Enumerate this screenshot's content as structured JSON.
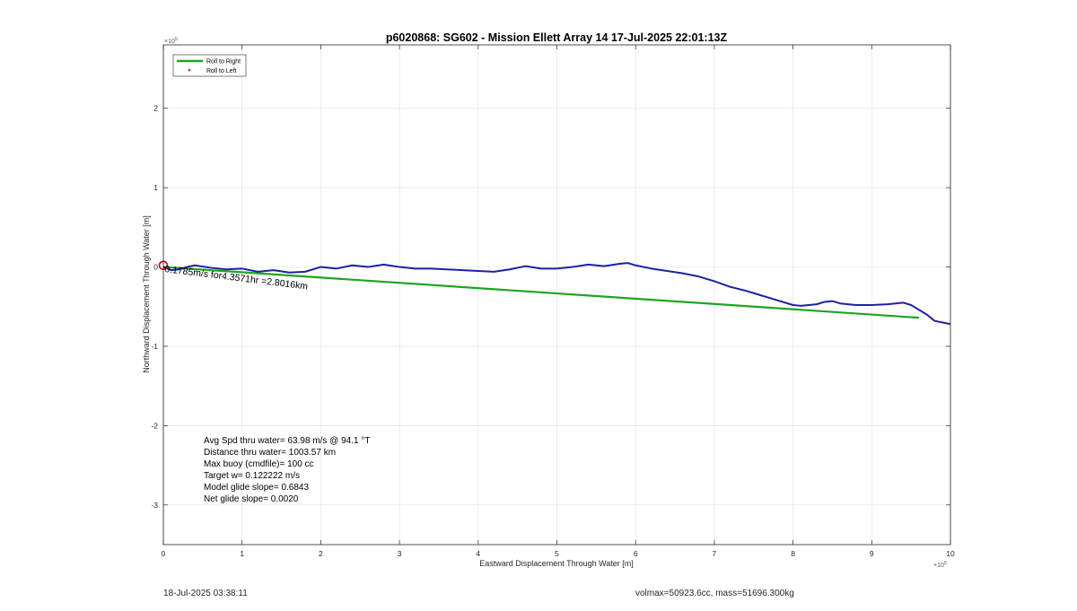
{
  "chart_data": {
    "type": "line",
    "title": "p6020868: SG602 - Mission Ellett Array 14 17-Jul-2025 22:01:13Z",
    "xlabel": "Eastward Displacement Through Water [m]",
    "ylabel": "Northward Displacement Through Water [m]",
    "x_exponent_label": "×10",
    "x_exponent": "5",
    "y_exponent_label": "×10",
    "y_exponent": "5",
    "xlim": [
      0,
      10
    ],
    "ylim": [
      -3.5,
      2.8
    ],
    "x_ticks": [
      0,
      1,
      2,
      3,
      4,
      5,
      6,
      7,
      8,
      9,
      10
    ],
    "y_ticks": [
      -3,
      -2,
      -1,
      0,
      1,
      2
    ],
    "grid": true,
    "legend_position": "top-left",
    "series": [
      {
        "name": "Roll to Right",
        "color": "#1fa51f",
        "x": [
          0,
          9.6
        ],
        "y": [
          0,
          -0.64
        ]
      },
      {
        "name": "Roll to Left",
        "color": "#cc2222",
        "marker": "dot",
        "x": [],
        "y": []
      },
      {
        "color": "#1f1fa5",
        "x": [
          0,
          0.1,
          0.2,
          0.3,
          0.4,
          0.6,
          0.8,
          1.0,
          1.2,
          1.4,
          1.6,
          1.8,
          2.0,
          2.2,
          2.4,
          2.6,
          2.8,
          3.0,
          3.2,
          3.4,
          3.6,
          3.8,
          4.0,
          4.2,
          4.4,
          4.6,
          4.8,
          5.0,
          5.2,
          5.4,
          5.6,
          5.8,
          5.9,
          6.0,
          6.2,
          6.4,
          6.6,
          6.8,
          7.0,
          7.2,
          7.4,
          7.6,
          7.8,
          8.0,
          8.1,
          8.2,
          8.3,
          8.4,
          8.5,
          8.6,
          8.8,
          9.0,
          9.2,
          9.4,
          9.5,
          9.7,
          9.8,
          10.0
        ],
        "y": [
          0,
          -0.04,
          -0.03,
          0.0,
          0.02,
          -0.01,
          -0.03,
          -0.02,
          -0.06,
          -0.04,
          -0.07,
          -0.06,
          0.0,
          -0.02,
          0.02,
          0.0,
          0.03,
          0.0,
          -0.02,
          -0.02,
          -0.03,
          -0.04,
          -0.05,
          -0.06,
          -0.03,
          0.01,
          -0.02,
          -0.02,
          0.0,
          0.03,
          0.01,
          0.04,
          0.05,
          0.02,
          -0.02,
          -0.05,
          -0.08,
          -0.12,
          -0.18,
          -0.25,
          -0.3,
          -0.36,
          -0.42,
          -0.48,
          -0.49,
          -0.48,
          -0.47,
          -0.44,
          -0.43,
          -0.46,
          -0.48,
          -0.48,
          -0.47,
          -0.45,
          -0.48,
          -0.6,
          -0.68,
          -0.72
        ]
      }
    ],
    "markers": [
      {
        "type": "circle",
        "x": 0,
        "y": 0.02,
        "color": "#d00000"
      }
    ],
    "annotations": {
      "track_label": "0.1785m/s for4.3571hr =2.8016km",
      "stats": [
        "Avg Spd thru water= 63.98 m/s @  94.1 °T",
        "Distance thru water= 1003.57 km",
        "Max buoy (cmdfile)= 100 cc",
        "Target w= 0.122222 m/s",
        "Model glide slope= 0.6843",
        "Net glide slope= 0.0020"
      ]
    }
  },
  "footer": {
    "timestamp": "18-Jul-2025 03:38:11",
    "volmax_mass": "volmax=50923.6cc, mass=51696.300kg"
  }
}
